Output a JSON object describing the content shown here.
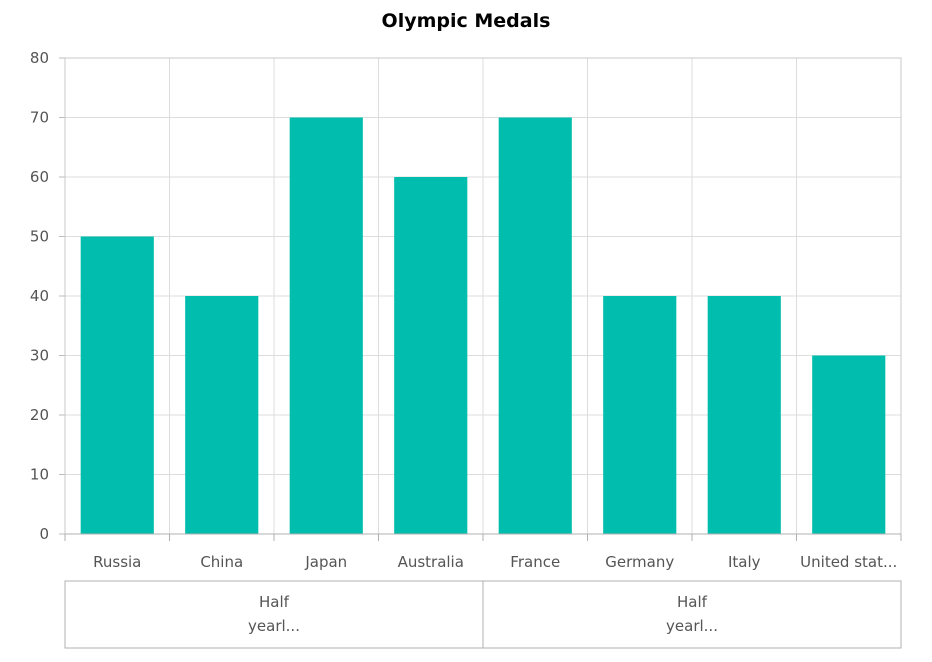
{
  "chart_data": {
    "type": "bar",
    "title": "Olympic Medals",
    "xlabel": "",
    "ylabel": "",
    "categories": [
      "Russia",
      "China",
      "Japan",
      "Australia",
      "France",
      "Germany",
      "Italy",
      "United stat..."
    ],
    "series": [
      {
        "values": [
          50,
          40,
          70,
          60,
          70,
          40,
          40,
          30
        ]
      }
    ],
    "ylim": [
      0,
      80
    ],
    "yticks": [
      0,
      10,
      20,
      30,
      40,
      50,
      60,
      70,
      80
    ],
    "grid": true,
    "legend": "none",
    "bar_color": "#00bdae",
    "groups": [
      {
        "line1": "Half",
        "line2": "yearl...",
        "span": [
          0,
          3
        ]
      },
      {
        "line1": "Half",
        "line2": "yearl...",
        "span": [
          4,
          7
        ]
      }
    ]
  }
}
